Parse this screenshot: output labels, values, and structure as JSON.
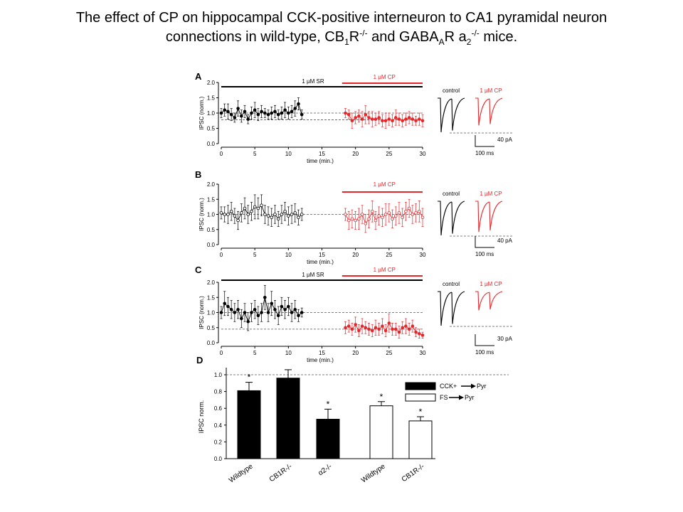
{
  "slide": {
    "title_line1": "The effect of CP on hippocampal CCK-positive interneuron to CA1 pyramidal neuron",
    "title_line2_parts": [
      "connections in wild-type, CB",
      "1",
      "R",
      "-/-",
      " and GABA",
      "A",
      "R a",
      "2",
      "-/-",
      " mice."
    ]
  },
  "colors": {
    "black": "#000000",
    "red": "#e8262a",
    "dashed": "#555555"
  },
  "chart_data": [
    {
      "panel": "A",
      "type": "scatter",
      "ylabel": "IPSC (norm.)",
      "xlabel": "time (min.)",
      "xlim": [
        0,
        30
      ],
      "ylim": [
        0,
        2
      ],
      "xticks": [
        "0",
        "5",
        "10",
        "15",
        "20",
        "25",
        "30"
      ],
      "yticks": [
        "0.0",
        "0.5",
        "1.0",
        "1.5",
        "2.0"
      ],
      "dashed_lines": [
        1.0,
        0.78
      ],
      "bars_labels": {
        "sr": "1 µM SR",
        "cp": "1 µM CP"
      },
      "trace_labels": {
        "control": "control",
        "cp": "1 µM CP"
      },
      "scale": {
        "amp": "40 pA",
        "time": "100 ms"
      },
      "series": [
        {
          "name": "",
          "style": "filled",
          "color": "black",
          "x": [
            0,
            0.5,
            1,
            1.5,
            2,
            2.5,
            3,
            3.5,
            4,
            4.5,
            5,
            5.5,
            6,
            6.5,
            7,
            7.5,
            8,
            8.5,
            9,
            9.5,
            10,
            10.5,
            11,
            11.5,
            12
          ],
          "y": [
            1.0,
            1.1,
            1.05,
            0.95,
            0.85,
            1.15,
            0.9,
            1.05,
            0.8,
            1.0,
            1.1,
            0.95,
            1.05,
            1.0,
            0.95,
            1.0,
            1.05,
            0.95,
            1.0,
            1.1,
            1.0,
            1.05,
            1.15,
            1.3,
            0.95
          ],
          "err": [
            0.15,
            0.2,
            0.25,
            0.2,
            0.15,
            0.25,
            0.2,
            0.2,
            0.15,
            0.2,
            0.25,
            0.2,
            0.2,
            0.15,
            0.15,
            0.2,
            0.2,
            0.15,
            0.2,
            0.25,
            0.2,
            0.2,
            0.25,
            0.2,
            0.15
          ]
        },
        {
          "name": "",
          "style": "filled",
          "color": "red",
          "x": [
            18.5,
            19,
            19.5,
            20,
            20.5,
            21,
            21.5,
            22,
            22.5,
            23,
            23.5,
            24,
            24.5,
            25,
            25.5,
            26,
            26.5,
            27,
            27.5,
            28,
            28.5,
            29,
            29.5,
            30
          ],
          "y": [
            1.0,
            0.95,
            0.75,
            0.85,
            0.9,
            0.8,
            0.95,
            0.85,
            0.8,
            0.8,
            0.85,
            0.75,
            0.75,
            0.8,
            0.75,
            0.85,
            0.8,
            0.75,
            0.8,
            0.85,
            0.8,
            0.75,
            0.8,
            0.75
          ],
          "err": [
            0.15,
            0.15,
            0.25,
            0.2,
            0.2,
            0.25,
            0.3,
            0.2,
            0.25,
            0.2,
            0.2,
            0.2,
            0.25,
            0.2,
            0.2,
            0.25,
            0.2,
            0.2,
            0.2,
            0.2,
            0.2,
            0.15,
            0.2,
            0.2
          ]
        }
      ]
    },
    {
      "panel": "B",
      "type": "scatter",
      "ylabel": "IPSC (norm.)",
      "xlabel": "time (min.)",
      "xlim": [
        0,
        30
      ],
      "ylim": [
        0,
        2
      ],
      "xticks": [
        "0",
        "5",
        "10",
        "15",
        "20",
        "25",
        "30"
      ],
      "yticks": [
        "0.0",
        "0.5",
        "1.0",
        "1.5",
        "2.0"
      ],
      "dashed_lines": [
        1.0
      ],
      "bars_labels": {
        "sr": "",
        "cp": "1 µM CP"
      },
      "trace_labels": {
        "control": "control",
        "cp": "1 µM CP"
      },
      "scale": {
        "amp": "40 pA",
        "time": "100 ms"
      },
      "series": [
        {
          "name": "",
          "style": "open",
          "color": "black",
          "x": [
            0,
            0.5,
            1,
            1.5,
            2,
            2.5,
            3,
            3.5,
            4,
            4.5,
            5,
            5.5,
            6,
            6.5,
            7,
            7.5,
            8,
            8.5,
            9,
            9.5,
            10,
            10.5,
            11,
            11.5,
            12
          ],
          "y": [
            1.05,
            1.0,
            1.0,
            1.1,
            0.95,
            0.8,
            1.05,
            1.2,
            1.0,
            1.1,
            1.25,
            1.2,
            1.3,
            1.0,
            0.95,
            0.9,
            1.0,
            0.85,
            1.0,
            1.1,
            0.95,
            1.0,
            1.05,
            0.9,
            1.0
          ],
          "err": [
            0.2,
            0.25,
            0.3,
            0.3,
            0.25,
            0.3,
            0.3,
            0.35,
            0.3,
            0.3,
            0.4,
            0.35,
            0.35,
            0.3,
            0.3,
            0.3,
            0.3,
            0.25,
            0.3,
            0.3,
            0.3,
            0.3,
            0.3,
            0.25,
            0.2
          ]
        },
        {
          "name": "",
          "style": "open",
          "color": "red",
          "x": [
            18.5,
            19,
            19.5,
            20,
            20.5,
            21,
            21.5,
            22,
            22.5,
            23,
            23.5,
            24,
            24.5,
            25,
            25.5,
            26,
            26.5,
            27,
            27.5,
            28,
            28.5,
            29,
            29.5,
            30
          ],
          "y": [
            1.0,
            0.8,
            0.85,
            0.8,
            0.85,
            1.0,
            0.7,
            0.85,
            1.1,
            0.8,
            0.95,
            0.9,
            1.0,
            1.05,
            0.85,
            0.95,
            1.05,
            0.9,
            1.1,
            1.2,
            1.0,
            1.05,
            1.1,
            0.9
          ],
          "err": [
            0.2,
            0.3,
            0.3,
            0.3,
            0.35,
            0.3,
            0.3,
            0.3,
            0.35,
            0.3,
            0.3,
            0.3,
            0.35,
            0.3,
            0.3,
            0.3,
            0.35,
            0.3,
            0.3,
            0.3,
            0.3,
            0.3,
            0.35,
            0.3
          ]
        }
      ]
    },
    {
      "panel": "C",
      "type": "scatter",
      "ylabel": "IPSC (norm.)",
      "xlabel": "time (min.)",
      "xlim": [
        0,
        30
      ],
      "ylim": [
        0,
        2
      ],
      "xticks": [
        "0",
        "5",
        "10",
        "15",
        "20",
        "25",
        "30"
      ],
      "yticks": [
        "0.0",
        "0.5",
        "1.0",
        "1.5",
        "2.0"
      ],
      "dashed_lines": [
        1.0,
        0.45
      ],
      "bars_labels": {
        "sr": "1 µM SR",
        "cp": "1 µM CP"
      },
      "trace_labels": {
        "control": "control",
        "cp": "1 µM CP"
      },
      "scale": {
        "amp": "30 pA",
        "time": "100 ms"
      },
      "series": [
        {
          "name": "",
          "style": "filled",
          "color": "black",
          "x": [
            0,
            0.5,
            1,
            1.5,
            2,
            2.5,
            3,
            3.5,
            4,
            4.5,
            5,
            5.5,
            6,
            6.5,
            7,
            7.5,
            8,
            8.5,
            9,
            9.5,
            10,
            10.5,
            11,
            11.5,
            12
          ],
          "y": [
            1.0,
            1.3,
            1.2,
            1.1,
            1.0,
            1.1,
            0.8,
            1.0,
            0.7,
            1.0,
            1.1,
            0.9,
            1.0,
            1.5,
            1.0,
            1.3,
            1.1,
            0.9,
            1.2,
            1.1,
            1.2,
            1.0,
            1.1,
            0.9,
            1.0
          ],
          "err": [
            0.2,
            0.4,
            0.3,
            0.3,
            0.3,
            0.3,
            0.3,
            0.3,
            0.3,
            0.3,
            0.3,
            0.3,
            0.3,
            0.4,
            0.3,
            0.4,
            0.3,
            0.3,
            0.3,
            0.3,
            0.3,
            0.3,
            0.3,
            0.2,
            0.15
          ]
        },
        {
          "name": "",
          "style": "filled",
          "color": "red",
          "x": [
            18.5,
            19,
            19.5,
            20,
            20.5,
            21,
            21.5,
            22,
            22.5,
            23,
            23.5,
            24,
            24.5,
            25,
            25.5,
            26,
            26.5,
            27,
            27.5,
            28,
            28.5,
            29,
            29.5,
            30
          ],
          "y": [
            0.5,
            0.55,
            0.45,
            0.6,
            0.4,
            0.55,
            0.5,
            0.45,
            0.4,
            0.5,
            0.45,
            0.55,
            0.4,
            0.65,
            0.45,
            0.45,
            0.35,
            0.5,
            0.55,
            0.45,
            0.55,
            0.35,
            0.3,
            0.25
          ],
          "err": [
            0.2,
            0.2,
            0.2,
            0.25,
            0.2,
            0.25,
            0.2,
            0.2,
            0.2,
            0.25,
            0.2,
            0.25,
            0.2,
            0.3,
            0.2,
            0.2,
            0.2,
            0.2,
            0.25,
            0.2,
            0.2,
            0.15,
            0.15,
            0.1
          ]
        }
      ]
    },
    {
      "panel": "D",
      "type": "bar",
      "ylabel": "IPSC norm.",
      "ylim": [
        0,
        1.0
      ],
      "yticks": [
        "0.0",
        "0.2",
        "0.4",
        "0.6",
        "0.8",
        "1.0"
      ],
      "dashed_lines": [
        1.0
      ],
      "categories": [
        "Wildtype",
        "CB1R-/-",
        "α2-/-",
        "Wildtype",
        "CB1R-/-"
      ],
      "values": [
        0.81,
        0.96,
        0.47,
        0.63,
        0.45
      ],
      "errors": [
        0.1,
        0.1,
        0.12,
        0.05,
        0.05
      ],
      "significant": [
        true,
        false,
        true,
        true,
        true
      ],
      "fill": [
        "black",
        "black",
        "black",
        "white",
        "white"
      ],
      "legend": [
        {
          "label": "CCK+ ",
          "target": "Pyr",
          "fill": "black"
        },
        {
          "label": "FS ",
          "target": "Pyr",
          "fill": "white"
        }
      ],
      "star": "*"
    }
  ]
}
